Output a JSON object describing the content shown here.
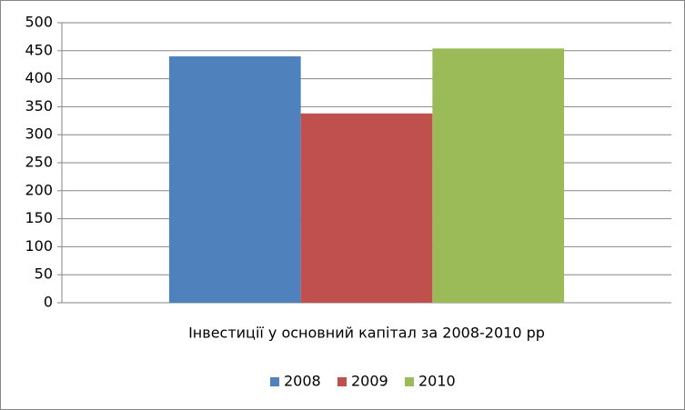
{
  "chart_data": {
    "type": "bar",
    "categories": [
      "Інвестиції у основний капітал за 2008-2010 рр"
    ],
    "series": [
      {
        "name": "2008",
        "color": "#4f81bd",
        "values": [
          440
        ]
      },
      {
        "name": "2009",
        "color": "#c0504d",
        "values": [
          338
        ]
      },
      {
        "name": "2010",
        "color": "#9bbb59",
        "values": [
          454
        ]
      }
    ],
    "ylim": [
      0,
      500
    ],
    "yticks": [
      0,
      50,
      100,
      150,
      200,
      250,
      300,
      350,
      400,
      450,
      500
    ],
    "grid": true,
    "legend": "bottom"
  }
}
